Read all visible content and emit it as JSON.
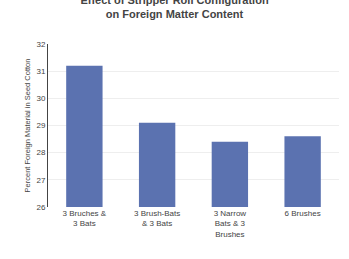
{
  "chart_data": {
    "type": "bar",
    "title": "Effect of Stripper Roll Configuration\non Foreign Matter Content",
    "categories": [
      "3 Bruches &\n3 Bats",
      "3 Brush-Bats\n& 3 Bats",
      "3 Narrow\nBats & 3\nBrushes",
      "6 Brushes"
    ],
    "values": [
      31.2,
      29.1,
      28.4,
      28.6
    ],
    "color": "#5b72b0",
    "ylabel": "Percent Foreign Material in Seed Cotton",
    "ylim": [
      26,
      32
    ],
    "yticks": [
      26,
      27,
      28,
      29,
      30,
      31,
      32
    ],
    "grid": true
  }
}
